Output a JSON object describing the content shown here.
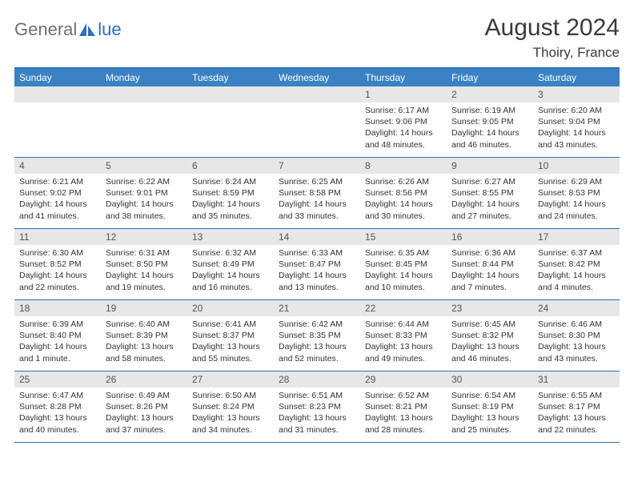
{
  "logo": {
    "text1": "General",
    "text2": "lue"
  },
  "header": {
    "title": "August 2024",
    "location": "Thoiry, France"
  },
  "colors": {
    "header_bar": "#3a82c4",
    "border": "#2f6fb3",
    "daynum_bg": "#e7e7e7",
    "logo_gray": "#6f6f6f",
    "logo_blue": "#2f6fb3"
  },
  "weekdays": [
    "Sunday",
    "Monday",
    "Tuesday",
    "Wednesday",
    "Thursday",
    "Friday",
    "Saturday"
  ],
  "weeks": [
    [
      null,
      null,
      null,
      null,
      {
        "n": "1",
        "sr": "6:17 AM",
        "ss": "9:06 PM",
        "dl": "14 hours and 48 minutes."
      },
      {
        "n": "2",
        "sr": "6:19 AM",
        "ss": "9:05 PM",
        "dl": "14 hours and 46 minutes."
      },
      {
        "n": "3",
        "sr": "6:20 AM",
        "ss": "9:04 PM",
        "dl": "14 hours and 43 minutes."
      }
    ],
    [
      {
        "n": "4",
        "sr": "6:21 AM",
        "ss": "9:02 PM",
        "dl": "14 hours and 41 minutes."
      },
      {
        "n": "5",
        "sr": "6:22 AM",
        "ss": "9:01 PM",
        "dl": "14 hours and 38 minutes."
      },
      {
        "n": "6",
        "sr": "6:24 AM",
        "ss": "8:59 PM",
        "dl": "14 hours and 35 minutes."
      },
      {
        "n": "7",
        "sr": "6:25 AM",
        "ss": "8:58 PM",
        "dl": "14 hours and 33 minutes."
      },
      {
        "n": "8",
        "sr": "6:26 AM",
        "ss": "8:56 PM",
        "dl": "14 hours and 30 minutes."
      },
      {
        "n": "9",
        "sr": "6:27 AM",
        "ss": "8:55 PM",
        "dl": "14 hours and 27 minutes."
      },
      {
        "n": "10",
        "sr": "6:29 AM",
        "ss": "8:53 PM",
        "dl": "14 hours and 24 minutes."
      }
    ],
    [
      {
        "n": "11",
        "sr": "6:30 AM",
        "ss": "8:52 PM",
        "dl": "14 hours and 22 minutes."
      },
      {
        "n": "12",
        "sr": "6:31 AM",
        "ss": "8:50 PM",
        "dl": "14 hours and 19 minutes."
      },
      {
        "n": "13",
        "sr": "6:32 AM",
        "ss": "8:49 PM",
        "dl": "14 hours and 16 minutes."
      },
      {
        "n": "14",
        "sr": "6:33 AM",
        "ss": "8:47 PM",
        "dl": "14 hours and 13 minutes."
      },
      {
        "n": "15",
        "sr": "6:35 AM",
        "ss": "8:45 PM",
        "dl": "14 hours and 10 minutes."
      },
      {
        "n": "16",
        "sr": "6:36 AM",
        "ss": "8:44 PM",
        "dl": "14 hours and 7 minutes."
      },
      {
        "n": "17",
        "sr": "6:37 AM",
        "ss": "8:42 PM",
        "dl": "14 hours and 4 minutes."
      }
    ],
    [
      {
        "n": "18",
        "sr": "6:39 AM",
        "ss": "8:40 PM",
        "dl": "14 hours and 1 minute."
      },
      {
        "n": "19",
        "sr": "6:40 AM",
        "ss": "8:39 PM",
        "dl": "13 hours and 58 minutes."
      },
      {
        "n": "20",
        "sr": "6:41 AM",
        "ss": "8:37 PM",
        "dl": "13 hours and 55 minutes."
      },
      {
        "n": "21",
        "sr": "6:42 AM",
        "ss": "8:35 PM",
        "dl": "13 hours and 52 minutes."
      },
      {
        "n": "22",
        "sr": "6:44 AM",
        "ss": "8:33 PM",
        "dl": "13 hours and 49 minutes."
      },
      {
        "n": "23",
        "sr": "6:45 AM",
        "ss": "8:32 PM",
        "dl": "13 hours and 46 minutes."
      },
      {
        "n": "24",
        "sr": "6:46 AM",
        "ss": "8:30 PM",
        "dl": "13 hours and 43 minutes."
      }
    ],
    [
      {
        "n": "25",
        "sr": "6:47 AM",
        "ss": "8:28 PM",
        "dl": "13 hours and 40 minutes."
      },
      {
        "n": "26",
        "sr": "6:49 AM",
        "ss": "8:26 PM",
        "dl": "13 hours and 37 minutes."
      },
      {
        "n": "27",
        "sr": "6:50 AM",
        "ss": "8:24 PM",
        "dl": "13 hours and 34 minutes."
      },
      {
        "n": "28",
        "sr": "6:51 AM",
        "ss": "8:23 PM",
        "dl": "13 hours and 31 minutes."
      },
      {
        "n": "29",
        "sr": "6:52 AM",
        "ss": "8:21 PM",
        "dl": "13 hours and 28 minutes."
      },
      {
        "n": "30",
        "sr": "6:54 AM",
        "ss": "8:19 PM",
        "dl": "13 hours and 25 minutes."
      },
      {
        "n": "31",
        "sr": "6:55 AM",
        "ss": "8:17 PM",
        "dl": "13 hours and 22 minutes."
      }
    ]
  ],
  "labels": {
    "sunrise": "Sunrise: ",
    "sunset": "Sunset: ",
    "daylight": "Daylight: "
  }
}
